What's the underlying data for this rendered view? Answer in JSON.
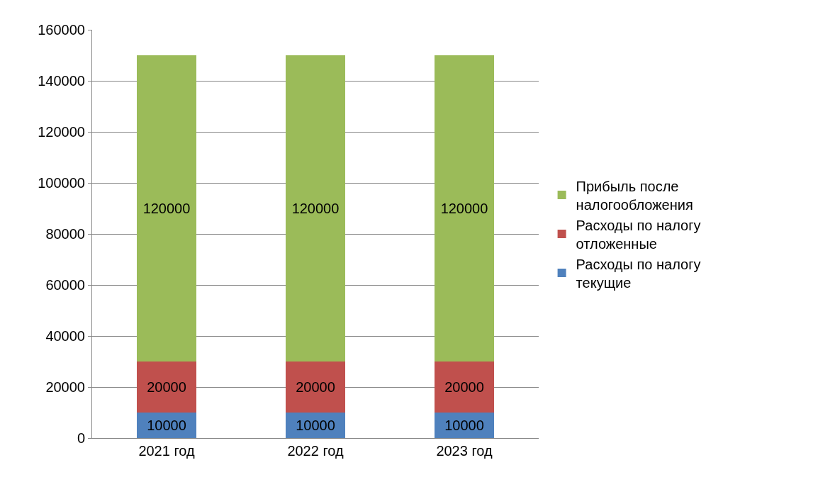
{
  "chart_data": {
    "type": "bar",
    "stacked": true,
    "categories": [
      "2021 год",
      "2022 год",
      "2023 год"
    ],
    "series": [
      {
        "name": "Расходы по налогу текущие",
        "color": "#4f81bd",
        "values": [
          10000,
          10000,
          10000
        ]
      },
      {
        "name": "Расходы по налогу отложенные",
        "color": "#c0504d",
        "values": [
          20000,
          20000,
          20000
        ]
      },
      {
        "name": "Прибыль после налогообложения",
        "color": "#9bbb59",
        "values": [
          120000,
          120000,
          120000
        ]
      }
    ],
    "ylim": [
      0,
      160000
    ],
    "yticks": [
      0,
      20000,
      40000,
      60000,
      80000,
      100000,
      120000,
      140000,
      160000
    ],
    "grid": "y",
    "legend": "right",
    "data_labels": true
  }
}
